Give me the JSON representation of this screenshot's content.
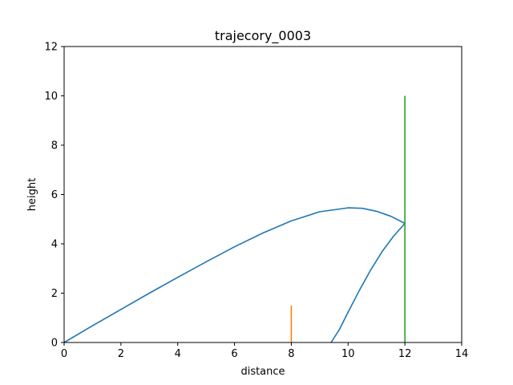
{
  "chart_data": {
    "type": "line",
    "title": "trajecory_0003",
    "xlabel": "distance",
    "ylabel": "height",
    "xlim": [
      0,
      14
    ],
    "ylim": [
      0,
      12
    ],
    "xticks": [
      0,
      2,
      4,
      6,
      8,
      10,
      12,
      14
    ],
    "yticks": [
      0,
      2,
      4,
      6,
      8,
      10,
      12
    ],
    "grid": false,
    "series": [
      {
        "color": "#1f77b4",
        "x": [
          0,
          1,
          2,
          3,
          4,
          5,
          6,
          7,
          8,
          9,
          10,
          10.5,
          11,
          11.5,
          12
        ],
        "y": [
          0,
          0.68,
          1.34,
          2.0,
          2.64,
          3.27,
          3.88,
          4.44,
          4.93,
          5.3,
          5.46,
          5.44,
          5.32,
          5.12,
          4.83
        ]
      },
      {
        "color": "#1f77b4",
        "x": [
          12,
          11.6,
          11.2,
          10.8,
          10.4,
          10.0,
          9.7,
          9.4
        ],
        "y": [
          4.83,
          4.31,
          3.69,
          2.95,
          2.12,
          1.23,
          0.54,
          0
        ]
      },
      {
        "color": "#ff7f0e",
        "x": [
          8,
          8
        ],
        "y": [
          0,
          1.5
        ]
      },
      {
        "color": "#2ca02c",
        "x": [
          12,
          12
        ],
        "y": [
          0,
          10
        ]
      }
    ]
  }
}
